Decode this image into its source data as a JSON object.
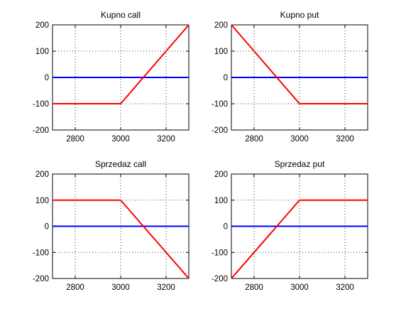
{
  "chart_data": [
    {
      "type": "line",
      "title": "Kupno call",
      "xlim": [
        2700,
        3300
      ],
      "ylim": [
        -200,
        200
      ],
      "xticks": [
        2800,
        3000,
        3200
      ],
      "yticks": [
        200,
        100,
        0,
        -100,
        -200
      ],
      "grid": true,
      "series": [
        {
          "color": "#0000ff",
          "x": [
            2700,
            3300
          ],
          "y": [
            0,
            0
          ]
        },
        {
          "color": "#ff0000",
          "x": [
            2700,
            3000,
            3300
          ],
          "y": [
            -100,
            -100,
            200
          ]
        }
      ]
    },
    {
      "type": "line",
      "title": "Kupno put",
      "xlim": [
        2700,
        3300
      ],
      "ylim": [
        -200,
        200
      ],
      "xticks": [
        2800,
        3000,
        3200
      ],
      "yticks": [
        200,
        100,
        0,
        -100,
        -200
      ],
      "grid": true,
      "series": [
        {
          "color": "#0000ff",
          "x": [
            2700,
            3300
          ],
          "y": [
            0,
            0
          ]
        },
        {
          "color": "#ff0000",
          "x": [
            2700,
            3000,
            3300
          ],
          "y": [
            200,
            -100,
            -100
          ]
        }
      ]
    },
    {
      "type": "line",
      "title": "Sprzedaz call",
      "xlim": [
        2700,
        3300
      ],
      "ylim": [
        -200,
        200
      ],
      "xticks": [
        2800,
        3000,
        3200
      ],
      "yticks": [
        200,
        100,
        0,
        -100,
        -200
      ],
      "grid": true,
      "series": [
        {
          "color": "#0000ff",
          "x": [
            2700,
            3300
          ],
          "y": [
            0,
            0
          ]
        },
        {
          "color": "#ff0000",
          "x": [
            2700,
            3000,
            3300
          ],
          "y": [
            100,
            100,
            -200
          ]
        }
      ]
    },
    {
      "type": "line",
      "title": "Sprzedaz put",
      "xlim": [
        2700,
        3300
      ],
      "ylim": [
        -200,
        200
      ],
      "xticks": [
        2800,
        3000,
        3200
      ],
      "yticks": [
        200,
        100,
        0,
        -100,
        -200
      ],
      "grid": true,
      "series": [
        {
          "color": "#0000ff",
          "x": [
            2700,
            3300
          ],
          "y": [
            0,
            0
          ]
        },
        {
          "color": "#ff0000",
          "x": [
            2700,
            3000,
            3300
          ],
          "y": [
            -200,
            100,
            100
          ]
        }
      ]
    }
  ]
}
